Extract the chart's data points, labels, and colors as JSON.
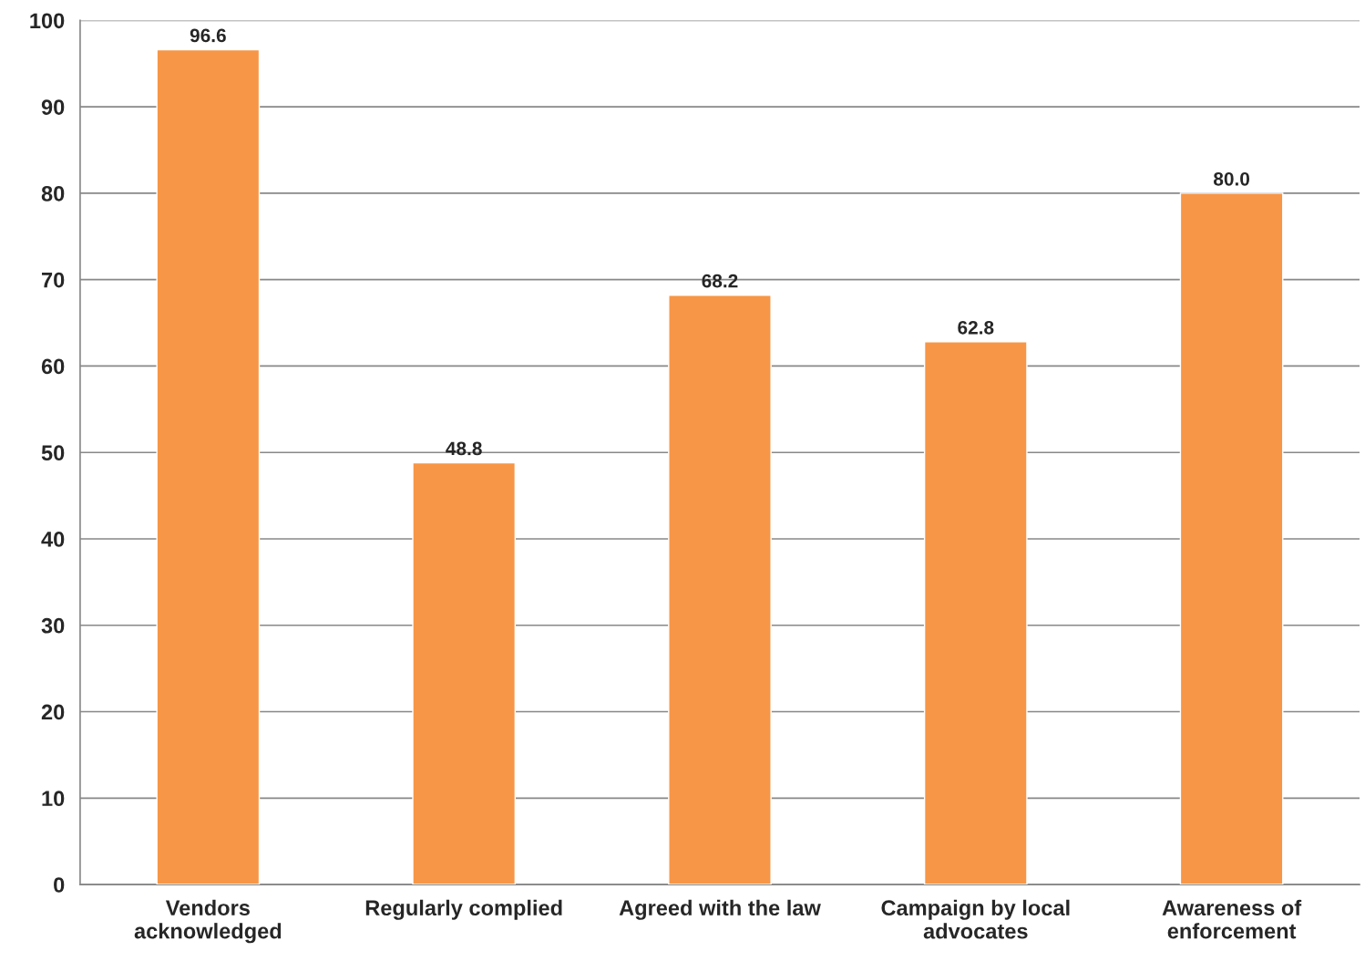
{
  "chart_data": {
    "type": "bar",
    "categories": [
      "Vendors\nacknowledged",
      "Regularly complied",
      "Agreed with the law",
      "Campaign by local\nadvocates",
      "Awareness of\nenforcement"
    ],
    "values": [
      96.6,
      48.8,
      68.2,
      62.8,
      80.0
    ],
    "value_labels": [
      "96.6",
      "48.8",
      "68.2",
      "62.8",
      "80.0"
    ],
    "color": "#f79646",
    "ylim": [
      0,
      100
    ],
    "yticks": [
      0,
      10,
      20,
      30,
      40,
      50,
      60,
      70,
      80,
      90,
      100
    ],
    "grid": "y",
    "legend": false
  }
}
